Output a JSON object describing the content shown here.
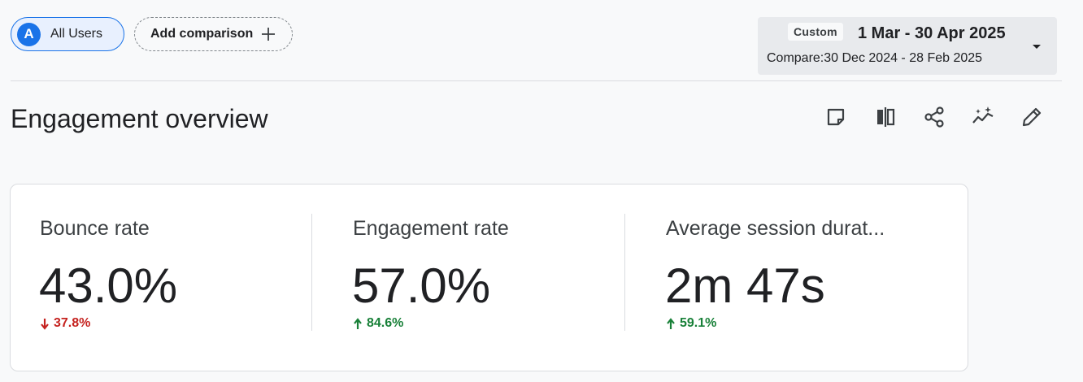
{
  "segments": {
    "users_label": "All Users",
    "avatar_letter": "A",
    "add_comparison_label": "Add comparison"
  },
  "date_picker": {
    "preset": "Custom",
    "range": "1 Mar - 30 Apr 2025",
    "compare": "Compare:30 Dec 2024 - 28 Feb 2025"
  },
  "page": {
    "title": "Engagement overview"
  },
  "toolbar": {
    "icons": [
      "note-icon",
      "compare-columns-icon",
      "share-icon",
      "insights-icon",
      "edit-icon"
    ]
  },
  "metrics": [
    {
      "label": "Bounce rate",
      "value": "43.0%",
      "change": "37.8%",
      "direction": "down",
      "color": "#c5221f"
    },
    {
      "label": "Engagement rate",
      "value": "57.0%",
      "change": "84.6%",
      "direction": "up",
      "color": "#188038"
    },
    {
      "label": "Average session durat...",
      "value": "2m 47s",
      "change": "59.1%",
      "direction": "up",
      "color": "#188038"
    }
  ],
  "colors": {
    "accent": "#1a73e8",
    "positive": "#188038",
    "negative": "#c5221f"
  }
}
